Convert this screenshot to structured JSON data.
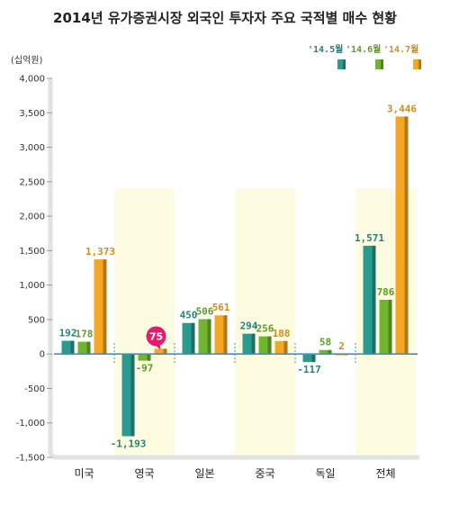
{
  "title": "2014년 유가증권시장 외국인 투자자 주요 국적별 매수 현황",
  "unit": "(십억원)",
  "colors": {
    "s0": "#2a9b8e",
    "s1": "#6fb62e",
    "s2": "#f5a623",
    "highlight": "#e8196e",
    "band": "#fdfbe0",
    "axis_frame": "#e2e2e2",
    "zero_line": "#3a8fd6"
  },
  "chart_data": {
    "type": "bar",
    "title": "2014년 유가증권시장 외국인 투자자 주요 국적별 매수 현황",
    "ylabel": "(십억원)",
    "categories": [
      "미국",
      "영국",
      "일본",
      "중국",
      "독일",
      "전체"
    ],
    "series": [
      {
        "name": "'14.5월",
        "values": [
          192,
          -1193,
          450,
          294,
          -117,
          1571
        ]
      },
      {
        "name": "'14.6월",
        "values": [
          178,
          -97,
          506,
          256,
          58,
          786
        ]
      },
      {
        "name": "'14.7월",
        "values": [
          1373,
          75,
          561,
          188,
          2,
          3446
        ]
      }
    ],
    "value_labels": [
      [
        "192",
        "-1,193",
        "450",
        "294",
        "-117",
        "1,571"
      ],
      [
        "178",
        "-97",
        "506",
        "256",
        "58",
        "786"
      ],
      [
        "1,373",
        "75",
        "561",
        "188",
        "2",
        "3,446"
      ]
    ],
    "yticks": [
      4000,
      3500,
      3000,
      2500,
      2000,
      1500,
      1000,
      500,
      0,
      -500,
      -1000,
      -1500
    ],
    "ytick_labels": [
      "4,000",
      "3,500",
      "3,000",
      "2,500",
      "2,000",
      "1,500",
      "1,000",
      "500",
      "0",
      "-500",
      "-1,000",
      "-1,500"
    ],
    "ylim": [
      -1500,
      4000
    ],
    "highlight_label": "75",
    "legend_position": "top-right"
  }
}
